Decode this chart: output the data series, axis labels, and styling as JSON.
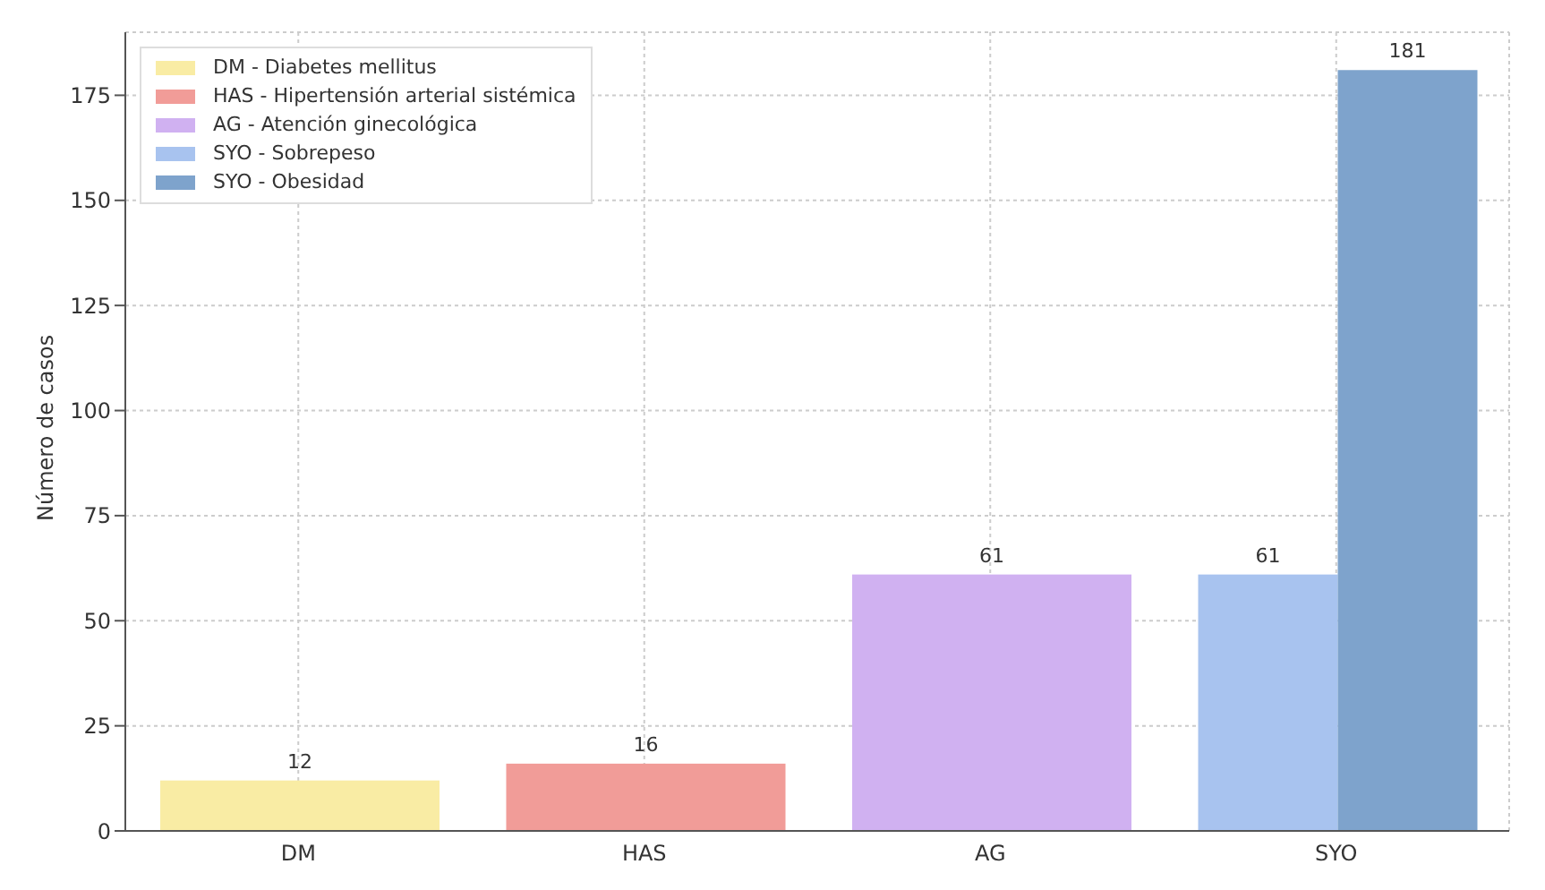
{
  "chart_data": {
    "type": "bar",
    "ylabel": "Número de casos",
    "categories": [
      "DM",
      "HAS",
      "AG",
      "SYO"
    ],
    "series": [
      {
        "name": "DM - Diabetes mellitus",
        "color": "#f9eca4",
        "values": [
          12,
          null,
          null,
          null
        ]
      },
      {
        "name": "HAS - Hipertensión arterial sistémica",
        "color": "#f19c98",
        "values": [
          null,
          16,
          null,
          null
        ]
      },
      {
        "name": "AG - Atención ginecológica",
        "color": "#d0b1f1",
        "values": [
          null,
          null,
          61,
          null
        ]
      },
      {
        "name": "SYO - Sobrepeso",
        "color": "#a8c3ef",
        "values": [
          null,
          null,
          null,
          61
        ]
      },
      {
        "name": "SYO - Obesidad",
        "color": "#7ea3cc",
        "values": [
          null,
          null,
          null,
          181
        ]
      }
    ],
    "ylim": [
      0,
      190
    ],
    "yticks": [
      0,
      25,
      50,
      75,
      100,
      125,
      150,
      175
    ],
    "grid": true,
    "legend": "top left",
    "data_labels": true
  }
}
